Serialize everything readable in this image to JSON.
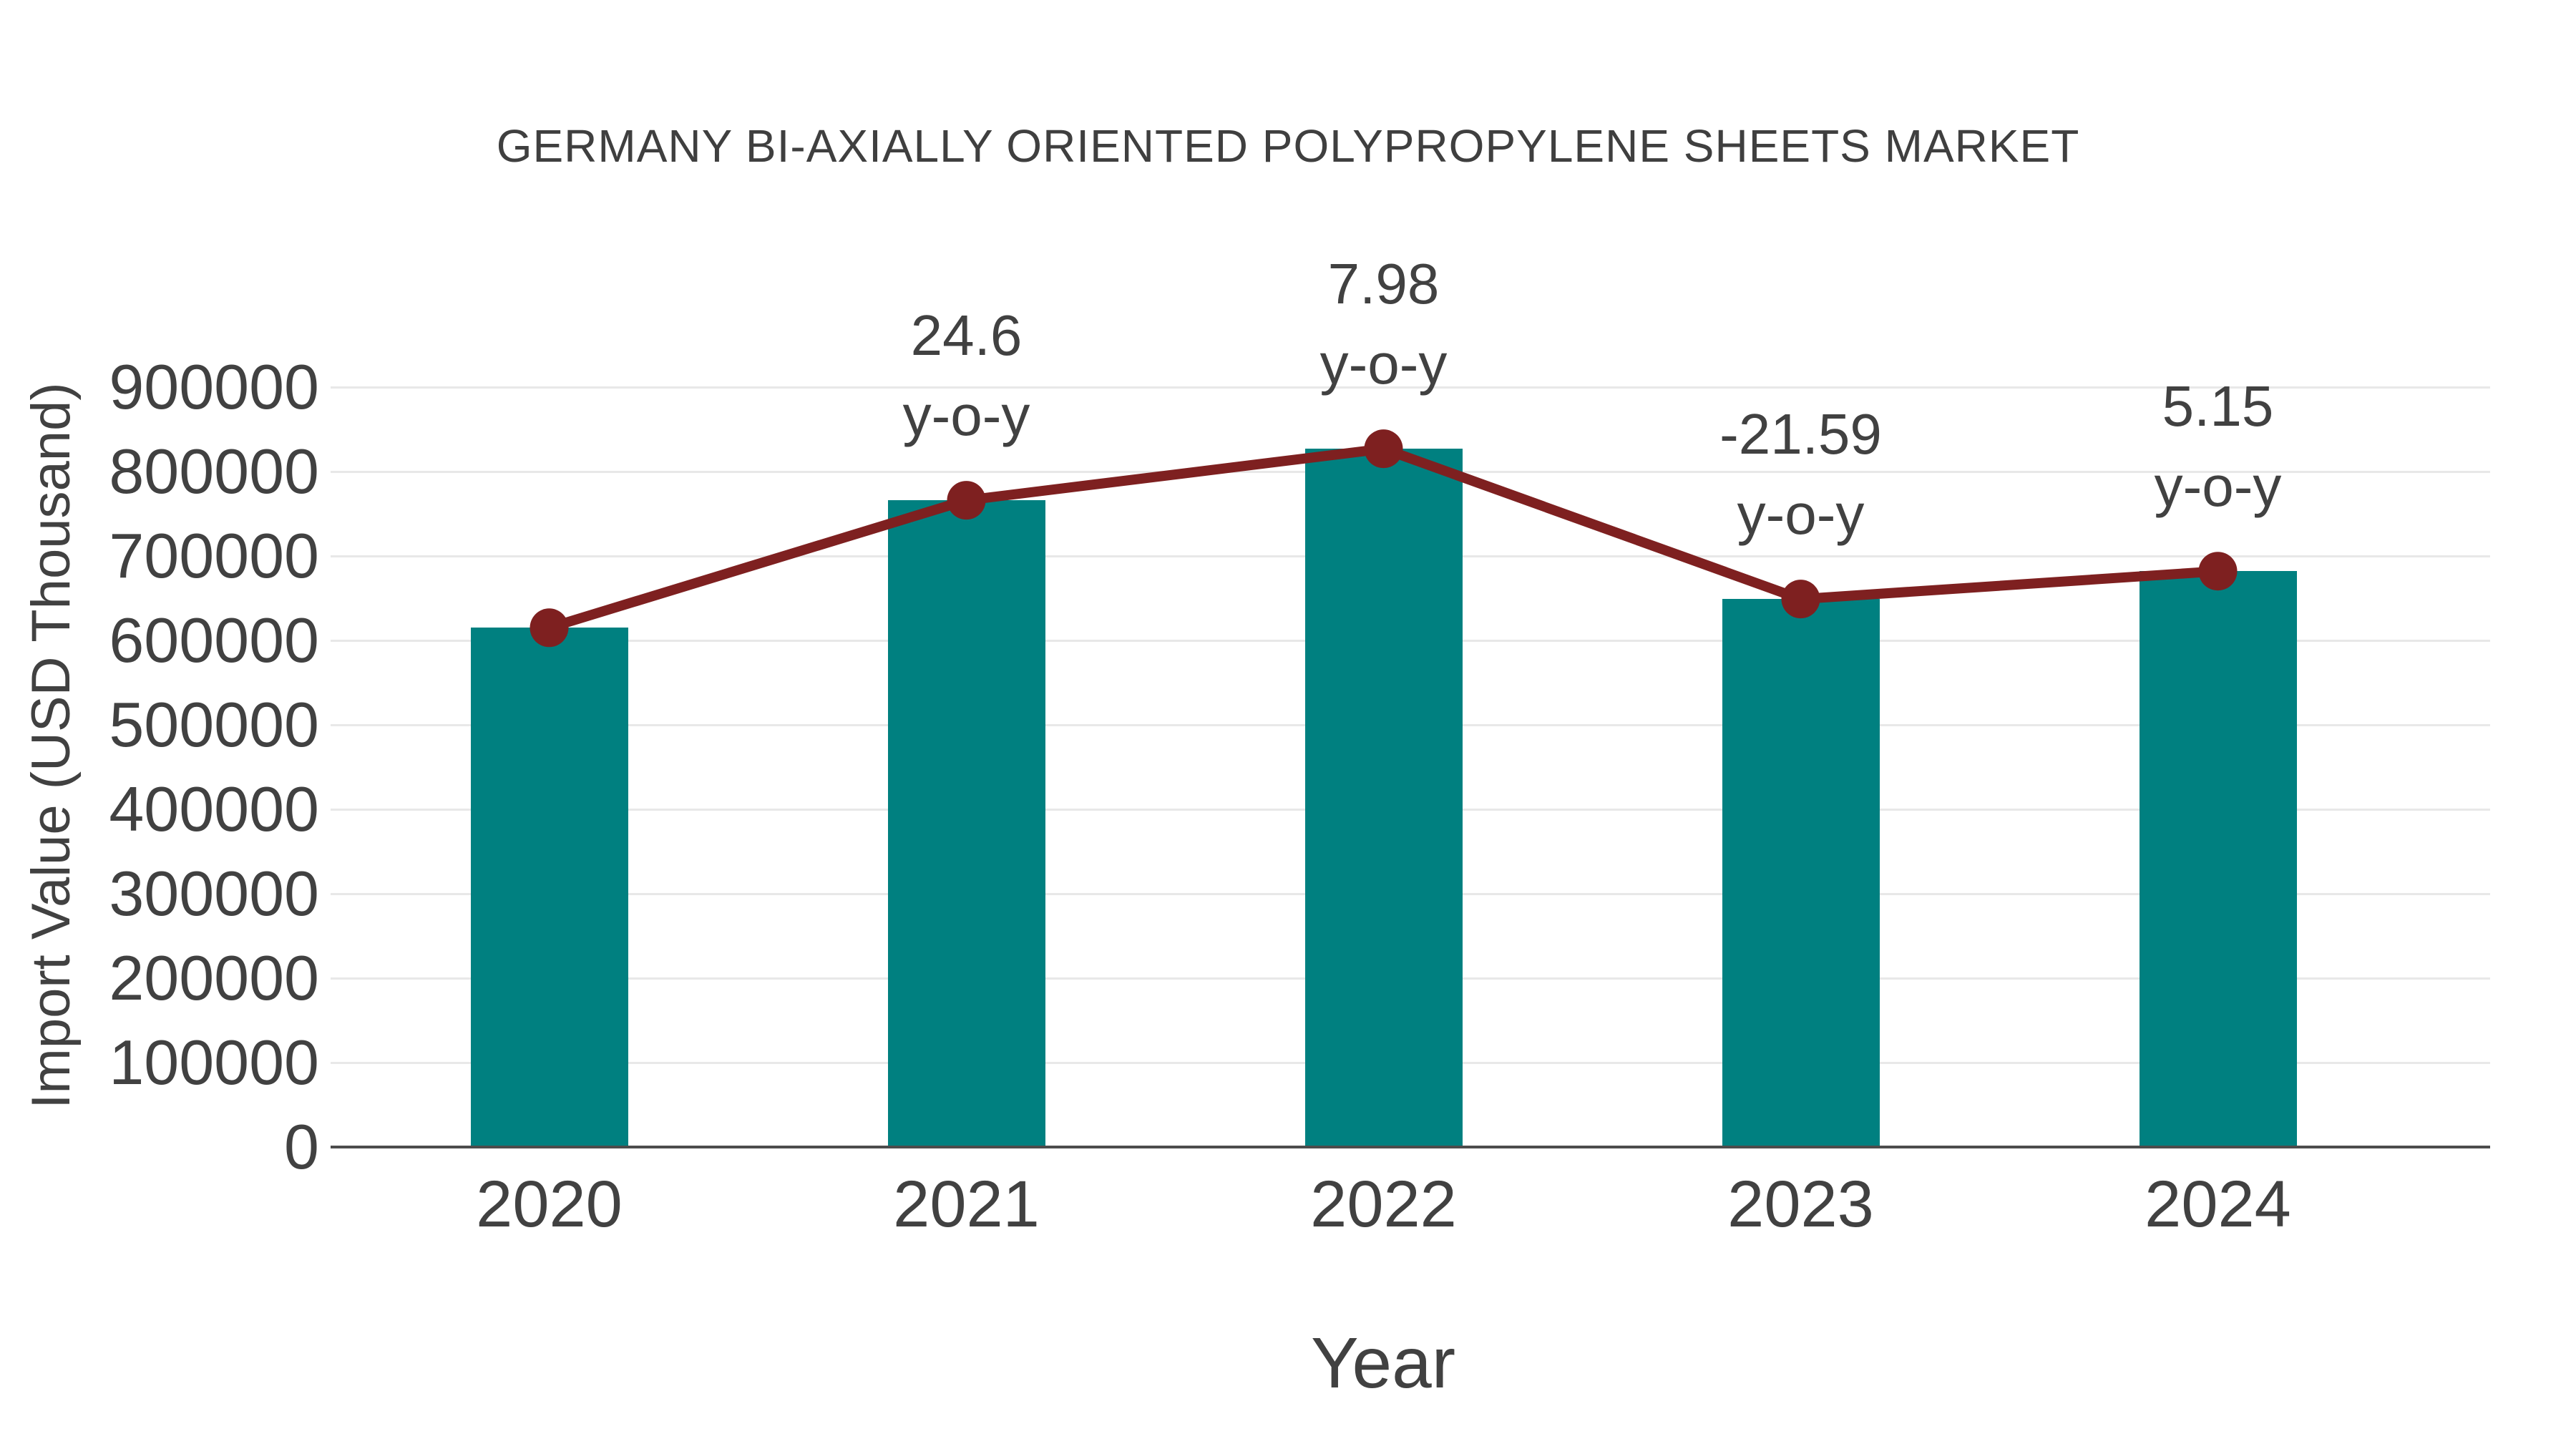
{
  "chart_data": {
    "type": "bar",
    "title": "GERMANY BI-AXIALLY ORIENTED POLYPROPYLENE SHEETS MARKET",
    "xlabel": "Year",
    "ylabel": "Import Value (USD Thousand)",
    "categories": [
      "2020",
      "2021",
      "2022",
      "2023",
      "2024"
    ],
    "series": [
      {
        "name": "Import Value bars",
        "type": "bar",
        "color": "#008080",
        "values": [
          615000,
          766000,
          827000,
          649000,
          682000
        ]
      },
      {
        "name": "Import Value trend line",
        "type": "line",
        "color": "#7e2020",
        "values": [
          615000,
          766000,
          827000,
          649000,
          682000
        ]
      }
    ],
    "annotations": [
      {
        "category": "2021",
        "lines": [
          "24.6",
          "y-o-y"
        ]
      },
      {
        "category": "2022",
        "lines": [
          "7.98",
          "y-o-y"
        ]
      },
      {
        "category": "2023",
        "lines": [
          "-21.59",
          "y-o-y"
        ]
      },
      {
        "category": "2024",
        "lines": [
          "5.15",
          "y-o-y"
        ]
      }
    ],
    "ylim": [
      0,
      900000
    ],
    "ytick_step": 100000,
    "ytick_labels": [
      "0",
      "100000",
      "200000",
      "300000",
      "400000",
      "500000",
      "600000",
      "700000",
      "800000",
      "900000"
    ],
    "grid": "horizontal",
    "legend": "none",
    "colors": {
      "bar": "#008080",
      "line": "#7e2020",
      "marker": "#7e2020",
      "grid": "#e8e8e8",
      "axis": "#4c4c4c",
      "text": "#414141"
    }
  }
}
